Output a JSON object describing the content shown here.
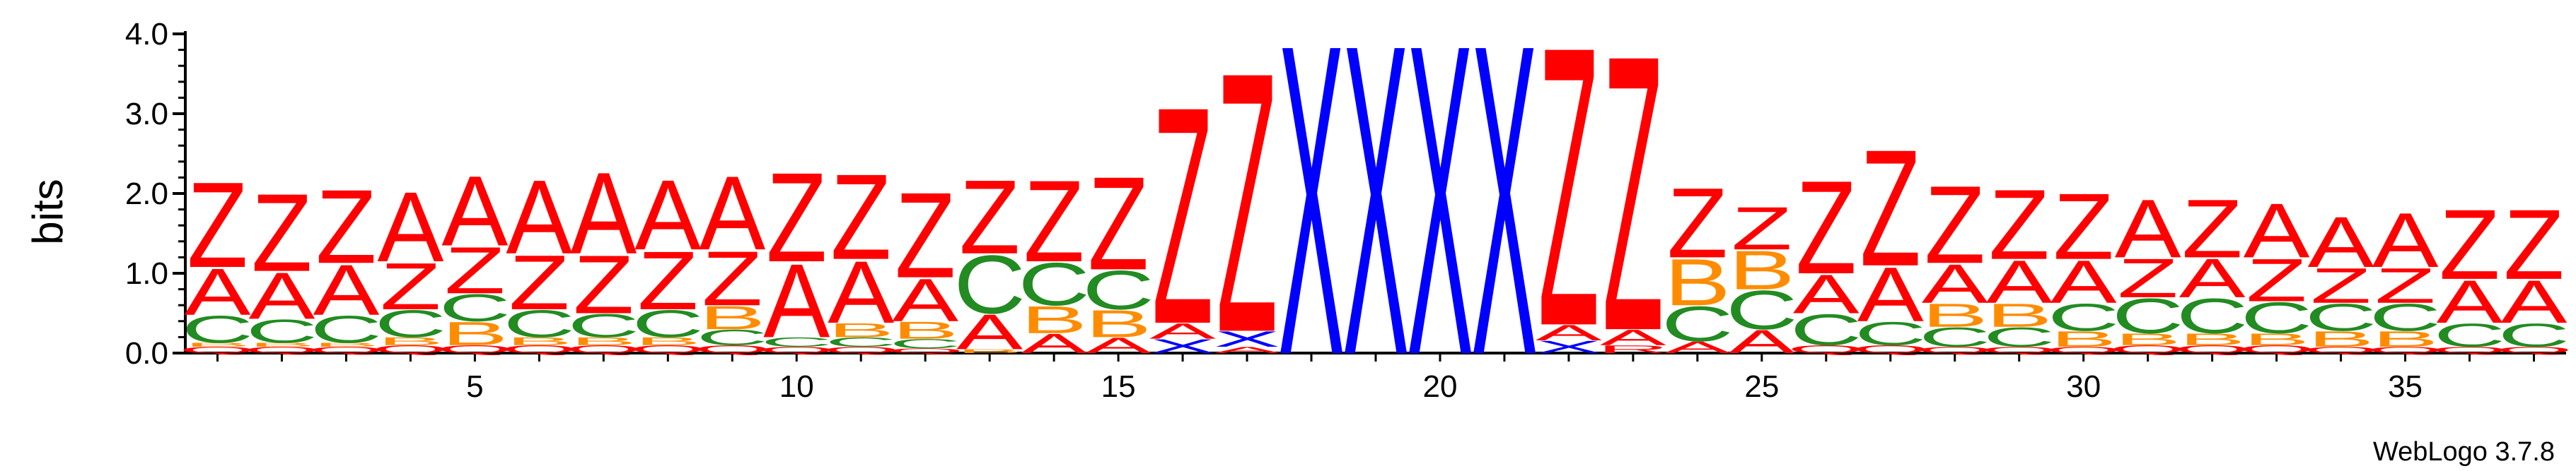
{
  "chart_data": {
    "type": "sequence-logo",
    "ylabel": "bits",
    "ylim": [
      0,
      4.0
    ],
    "y_ticks": [
      "0.0",
      "1.0",
      "2.0",
      "3.0",
      "4.0"
    ],
    "x_ticks": [
      "5",
      "10",
      "15",
      "20",
      "25",
      "30",
      "35"
    ],
    "x_tick_positions": [
      5,
      10,
      15,
      20,
      25,
      30,
      35
    ],
    "positions": 37,
    "colors": {
      "Z": "#ff0000",
      "A": "#ff0000",
      "X": "#0000ff",
      "C": "#228b22",
      "B": "#ff8c00",
      "Q": "#ff0000"
    },
    "columns": [
      [
        [
          "Q",
          0.08
        ],
        [
          "B",
          0.05
        ],
        [
          "C",
          0.35
        ],
        [
          "A",
          0.6
        ],
        [
          "Z",
          1.1
        ]
      ],
      [
        [
          "Q",
          0.08
        ],
        [
          "B",
          0.05
        ],
        [
          "C",
          0.3
        ],
        [
          "A",
          0.6
        ],
        [
          "Z",
          1.0
        ]
      ],
      [
        [
          "Q",
          0.08
        ],
        [
          "B",
          0.05
        ],
        [
          "C",
          0.35
        ],
        [
          "A",
          0.65
        ],
        [
          "Z",
          0.95
        ]
      ],
      [
        [
          "Q",
          0.1
        ],
        [
          "B",
          0.1
        ],
        [
          "C",
          0.35
        ],
        [
          "Z",
          0.6
        ],
        [
          "A",
          0.9
        ]
      ],
      [
        [
          "Q",
          0.1
        ],
        [
          "B",
          0.3
        ],
        [
          "C",
          0.35
        ],
        [
          "Z",
          0.6
        ],
        [
          "A",
          0.9
        ]
      ],
      [
        [
          "Q",
          0.1
        ],
        [
          "B",
          0.1
        ],
        [
          "C",
          0.35
        ],
        [
          "Z",
          0.7
        ],
        [
          "A",
          0.95
        ]
      ],
      [
        [
          "Q",
          0.1
        ],
        [
          "B",
          0.1
        ],
        [
          "C",
          0.3
        ],
        [
          "Z",
          0.75
        ],
        [
          "A",
          1.05
        ]
      ],
      [
        [
          "Q",
          0.1
        ],
        [
          "B",
          0.1
        ],
        [
          "C",
          0.35
        ],
        [
          "Z",
          0.75
        ],
        [
          "A",
          0.9
        ]
      ],
      [
        [
          "Q",
          0.1
        ],
        [
          "C",
          0.2
        ],
        [
          "B",
          0.3
        ],
        [
          "Z",
          0.7
        ],
        [
          "A",
          0.95
        ]
      ],
      [
        [
          "Q",
          0.08
        ],
        [
          "C",
          0.12
        ],
        [
          "A",
          0.95
        ],
        [
          "Z",
          1.15
        ]
      ],
      [
        [
          "Q",
          0.08
        ],
        [
          "C",
          0.12
        ],
        [
          "B",
          0.18
        ],
        [
          "A",
          0.8
        ],
        [
          "Z",
          1.1
        ]
      ],
      [
        [
          "Q",
          0.06
        ],
        [
          "C",
          0.12
        ],
        [
          "B",
          0.22
        ],
        [
          "A",
          0.55
        ],
        [
          "Z",
          1.1
        ]
      ],
      [
        [
          "B",
          0.05
        ],
        [
          "A",
          0.45
        ],
        [
          "C",
          0.75
        ],
        [
          "Z",
          0.95
        ]
      ],
      [
        [
          "A",
          0.25
        ],
        [
          "B",
          0.35
        ],
        [
          "C",
          0.55
        ],
        [
          "Z",
          1.05
        ]
      ],
      [
        [
          "A",
          0.2
        ],
        [
          "B",
          0.35
        ],
        [
          "C",
          0.5
        ],
        [
          "Z",
          1.2
        ]
      ],
      [
        [
          "X",
          0.18
        ],
        [
          "A",
          0.2
        ],
        [
          "Z",
          2.8
        ]
      ],
      [
        [
          "A",
          0.08
        ],
        [
          "X",
          0.2
        ],
        [
          "Z",
          3.35
        ]
      ],
      [
        [
          "X",
          4.0
        ]
      ],
      [
        [
          "X",
          4.0
        ]
      ],
      [
        [
          "X",
          4.0
        ]
      ],
      [
        [
          "X",
          4.0
        ]
      ],
      [
        [
          "X",
          0.16
        ],
        [
          "A",
          0.2
        ],
        [
          "Z",
          3.6
        ]
      ],
      [
        [
          "R",
          0.1
        ],
        [
          "A",
          0.2
        ],
        [
          "Z",
          3.55
        ]
      ],
      [
        [
          "A",
          0.15
        ],
        [
          "C",
          0.45
        ],
        [
          "B",
          0.6
        ],
        [
          "Z",
          0.9
        ]
      ],
      [
        [
          "A",
          0.3
        ],
        [
          "C",
          0.5
        ],
        [
          "B",
          0.5
        ],
        [
          "Z",
          0.55
        ]
      ],
      [
        [
          "Q",
          0.1
        ],
        [
          "C",
          0.4
        ],
        [
          "A",
          0.5
        ],
        [
          "Z",
          1.2
        ]
      ],
      [
        [
          "Q",
          0.1
        ],
        [
          "C",
          0.3
        ],
        [
          "A",
          0.7
        ],
        [
          "Z",
          1.5
        ]
      ],
      [
        [
          "Q",
          0.08
        ],
        [
          "C",
          0.25
        ],
        [
          "B",
          0.3
        ],
        [
          "A",
          0.5
        ],
        [
          "Z",
          1.0
        ]
      ],
      [
        [
          "Q",
          0.08
        ],
        [
          "C",
          0.25
        ],
        [
          "B",
          0.3
        ],
        [
          "A",
          0.55
        ],
        [
          "Z",
          0.9
        ]
      ],
      [
        [
          "Q",
          0.08
        ],
        [
          "B",
          0.2
        ],
        [
          "C",
          0.35
        ],
        [
          "A",
          0.55
        ],
        [
          "Z",
          0.85
        ]
      ],
      [
        [
          "Q",
          0.1
        ],
        [
          "B",
          0.15
        ],
        [
          "C",
          0.45
        ],
        [
          "Z",
          0.5
        ],
        [
          "A",
          0.75
        ]
      ],
      [
        [
          "Q",
          0.1
        ],
        [
          "B",
          0.15
        ],
        [
          "C",
          0.45
        ],
        [
          "A",
          0.5
        ],
        [
          "Z",
          0.75
        ]
      ],
      [
        [
          "Q",
          0.1
        ],
        [
          "B",
          0.15
        ],
        [
          "C",
          0.4
        ],
        [
          "Z",
          0.55
        ],
        [
          "A",
          0.7
        ]
      ],
      [
        [
          "Q",
          0.08
        ],
        [
          "B",
          0.2
        ],
        [
          "C",
          0.35
        ],
        [
          "Z",
          0.45
        ],
        [
          "A",
          0.65
        ]
      ],
      [
        [
          "Q",
          0.08
        ],
        [
          "B",
          0.2
        ],
        [
          "C",
          0.35
        ],
        [
          "Z",
          0.45
        ],
        [
          "A",
          0.7
        ]
      ],
      [
        [
          "Q",
          0.08
        ],
        [
          "C",
          0.3
        ],
        [
          "A",
          0.55
        ],
        [
          "Z",
          0.9
        ]
      ],
      [
        [
          "Q",
          0.08
        ],
        [
          "C",
          0.3
        ],
        [
          "A",
          0.55
        ],
        [
          "Z",
          0.9
        ]
      ]
    ]
  },
  "credit": "WebLogo 3.7.8"
}
